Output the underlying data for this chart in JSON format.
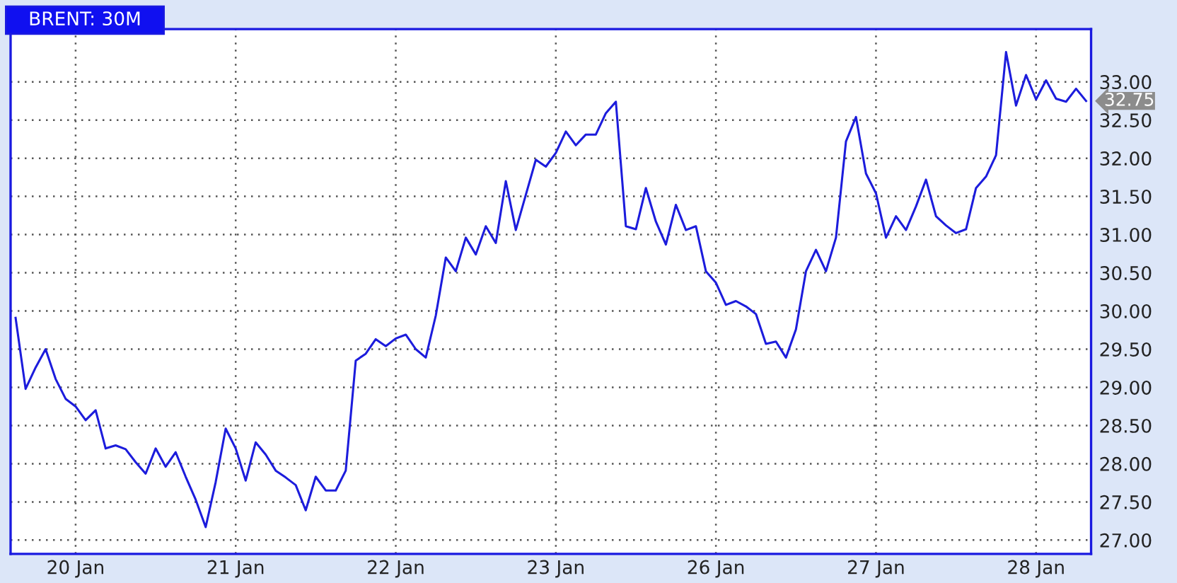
{
  "chart_data": {
    "type": "line",
    "title": "BRENT: 30M",
    "categories": [
      null,
      null,
      null,
      null,
      null,
      null,
      "20 Jan",
      null,
      null,
      null,
      null,
      null,
      null,
      null,
      null,
      null,
      null,
      null,
      null,
      null,
      null,
      null,
      "21 Jan",
      null,
      null,
      null,
      null,
      null,
      null,
      null,
      null,
      null,
      null,
      null,
      null,
      null,
      null,
      null,
      "22 Jan",
      null,
      null,
      null,
      null,
      null,
      null,
      null,
      null,
      null,
      null,
      null,
      null,
      null,
      null,
      null,
      "23 Jan",
      null,
      null,
      null,
      null,
      null,
      null,
      null,
      null,
      null,
      null,
      null,
      null,
      null,
      null,
      null,
      "26 Jan",
      null,
      null,
      null,
      null,
      null,
      null,
      null,
      null,
      null,
      null,
      null,
      null,
      null,
      null,
      null,
      "27 Jan",
      null,
      null,
      null,
      null,
      null,
      null,
      null,
      null,
      null,
      null,
      null,
      null,
      null,
      null,
      null,
      "28 Jan",
      null,
      null,
      null,
      null,
      null
    ],
    "series": [
      {
        "color": "#1c1cdc",
        "values": [
          29.91,
          28.98,
          29.26,
          29.5,
          29.11,
          28.85,
          28.75,
          28.57,
          28.7,
          28.2,
          28.24,
          28.19,
          28.02,
          27.87,
          28.2,
          27.96,
          28.15,
          27.83,
          27.53,
          27.17,
          27.76,
          28.46,
          28.2,
          27.78,
          28.28,
          28.12,
          27.91,
          27.82,
          27.72,
          27.39,
          27.83,
          27.65,
          27.65,
          27.91,
          29.35,
          29.44,
          29.63,
          29.54,
          29.64,
          29.69,
          29.5,
          29.39,
          29.94,
          30.7,
          30.52,
          30.96,
          30.74,
          31.11,
          30.89,
          31.7,
          31.06,
          31.52,
          31.98,
          31.89,
          32.07,
          32.35,
          32.17,
          32.31,
          32.31,
          32.59,
          32.74,
          31.11,
          31.07,
          31.61,
          31.17,
          30.87,
          31.39,
          31.06,
          31.11,
          30.52,
          30.37,
          30.08,
          30.13,
          30.06,
          29.96,
          29.57,
          29.6,
          29.39,
          29.76,
          30.52,
          30.8,
          30.52,
          30.96,
          32.22,
          32.54,
          31.8,
          31.54,
          30.96,
          31.24,
          31.06,
          31.37,
          31.72,
          31.24,
          31.12,
          31.02,
          31.07,
          31.61,
          31.76,
          32.04,
          33.39,
          32.69,
          33.09,
          32.77,
          33.02,
          32.78,
          32.74,
          32.91,
          32.75
        ]
      }
    ],
    "ylim": [
      26.82,
      33.69
    ],
    "yticks": [
      {
        "value": 27,
        "label": "27.00"
      },
      {
        "value": 27.5,
        "label": "27.50"
      },
      {
        "value": 28,
        "label": "28.00"
      },
      {
        "value": 28.5,
        "label": "28.50"
      },
      {
        "value": 29,
        "label": "29.00"
      },
      {
        "value": 29.5,
        "label": "29.50"
      },
      {
        "value": 30,
        "label": "30.00"
      },
      {
        "value": 30.5,
        "label": "30.50"
      },
      {
        "value": 31,
        "label": "31.00"
      },
      {
        "value": 31.5,
        "label": "31.50"
      },
      {
        "value": 32,
        "label": "32.00"
      },
      {
        "value": 32.5,
        "label": "32.50"
      },
      {
        "value": 33,
        "label": "33.00"
      }
    ],
    "annotations": [
      "32.75"
    ],
    "grid": true,
    "line_style": "solid",
    "legend": false
  }
}
